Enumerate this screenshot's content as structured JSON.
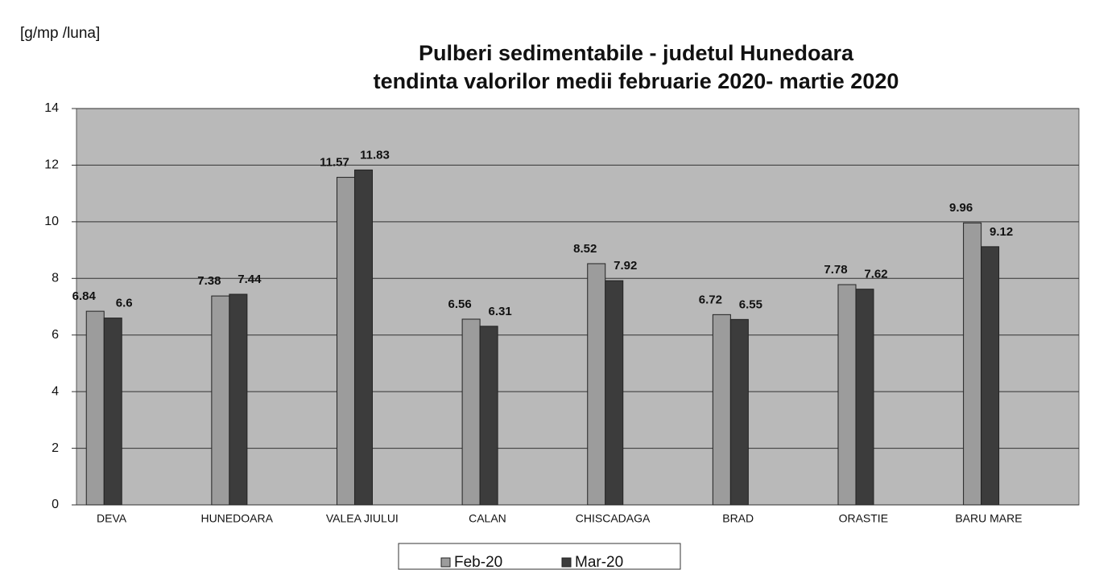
{
  "chart_data": {
    "type": "bar",
    "title": [
      "Pulberi sedimentabile - judetul Hunedoara",
      "tendinta valorilor medii februarie  2020- martie 2020"
    ],
    "y_label": "[g/mp /luna]",
    "categories": [
      "DEVA",
      "HUNEDOARA",
      "VALEA JIULUI",
      "CALAN",
      "CHISCADAGA",
      "BRAD",
      "ORASTIE",
      "BARU MARE"
    ],
    "series": [
      {
        "name": "Feb-20",
        "color": "#9c9c9c",
        "values": [
          6.84,
          7.38,
          11.57,
          6.56,
          8.52,
          6.72,
          7.78,
          9.96
        ]
      },
      {
        "name": "Mar-20",
        "color": "#3c3c3c",
        "values": [
          6.6,
          7.44,
          11.83,
          6.31,
          7.92,
          6.55,
          7.62,
          9.12
        ]
      }
    ],
    "ylim": [
      0,
      14
    ],
    "yticks": [
      0,
      2,
      4,
      6,
      8,
      10,
      12,
      14
    ],
    "grid": true,
    "legend": "bottom"
  }
}
